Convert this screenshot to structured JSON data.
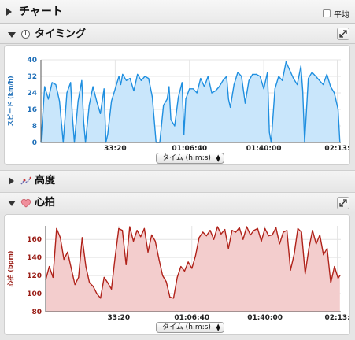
{
  "header": {
    "title": "チャート",
    "checkbox_label": "平均"
  },
  "sections": {
    "timing": {
      "title": "タイミング"
    },
    "altitude": {
      "title": "高度"
    },
    "heart": {
      "title": "心拍"
    }
  },
  "dropdown_label": "タイム (h:m:s)",
  "colors": {
    "speed_line": "#1f8fe0",
    "speed_fill": "#c9e6fb",
    "hr_line": "#b0221a",
    "hr_fill": "#f3cdcd"
  },
  "chart_data": [
    {
      "type": "area",
      "ylabel": "スピード (km/h)",
      "xlabel": "タイム (h:m:s)",
      "ylim": [
        0,
        40
      ],
      "yticks": [
        0,
        8,
        16,
        24,
        32,
        40
      ],
      "xlim": [
        0,
        8075
      ],
      "xtick_seconds": [
        2000,
        4000,
        6000,
        7980
      ],
      "xtick_labels": [
        "33:20",
        "01:06:40",
        "01:40:00",
        "02:13:"
      ],
      "grid": true,
      "x": [
        0,
        100,
        200,
        300,
        400,
        500,
        600,
        700,
        800,
        850,
        900,
        1000,
        1100,
        1150,
        1200,
        1300,
        1400,
        1500,
        1600,
        1700,
        1750,
        1800,
        1900,
        2000,
        2100,
        2150,
        2200,
        2300,
        2400,
        2500,
        2600,
        2700,
        2800,
        2900,
        3000,
        3100,
        3200,
        3300,
        3400,
        3450,
        3500,
        3600,
        3700,
        3800,
        3850,
        3900,
        4000,
        4100,
        4200,
        4300,
        4400,
        4500,
        4600,
        4700,
        4800,
        4900,
        5000,
        5050,
        5100,
        5200,
        5300,
        5400,
        5500,
        5600,
        5700,
        5800,
        5900,
        6000,
        6100,
        6150,
        6200,
        6300,
        6400,
        6500,
        6600,
        6700,
        6800,
        6900,
        7000,
        7050,
        7100,
        7200,
        7300,
        7400,
        7500,
        7600,
        7700,
        7800,
        7900,
        8000,
        8050
      ],
      "values": [
        0,
        27,
        21,
        29,
        28,
        20,
        0,
        24,
        29,
        12,
        0,
        20,
        30,
        10,
        0,
        18,
        27,
        20,
        14,
        26,
        0,
        4,
        20,
        26,
        32,
        28,
        33,
        30,
        31,
        25,
        33,
        30,
        32,
        31,
        22,
        0,
        0,
        18,
        21,
        27,
        11,
        8,
        22,
        29,
        4,
        21,
        26,
        26,
        24,
        31,
        27,
        32,
        24,
        25,
        27,
        30,
        32,
        21,
        17,
        28,
        34,
        32,
        19,
        30,
        33,
        33,
        32,
        26,
        34,
        5,
        0,
        26,
        32,
        30,
        39,
        35,
        31,
        28,
        37,
        25,
        0,
        31,
        34,
        32,
        30,
        28,
        33,
        27,
        24,
        16,
        0
      ]
    },
    {
      "type": "area",
      "ylabel": "心拍 (bpm)",
      "xlabel": "タイム (h:m:s)",
      "ylim": [
        80,
        175
      ],
      "yticks": [
        80,
        100,
        120,
        140,
        160
      ],
      "xlim": [
        0,
        8075
      ],
      "xtick_seconds": [
        2000,
        4000,
        6000,
        7980
      ],
      "xtick_labels": [
        "33:20",
        "01:06:40",
        "01:40:00",
        "02:13:"
      ],
      "grid": true,
      "x": [
        0,
        100,
        200,
        300,
        400,
        500,
        600,
        700,
        800,
        900,
        1000,
        1100,
        1200,
        1300,
        1400,
        1500,
        1600,
        1700,
        1800,
        1900,
        2000,
        2100,
        2200,
        2300,
        2400,
        2500,
        2600,
        2700,
        2800,
        2900,
        3000,
        3100,
        3200,
        3300,
        3400,
        3500,
        3600,
        3700,
        3800,
        3900,
        4000,
        4100,
        4200,
        4300,
        4400,
        4500,
        4600,
        4700,
        4800,
        4900,
        5000,
        5100,
        5200,
        5300,
        5400,
        5500,
        5600,
        5700,
        5800,
        5900,
        6000,
        6100,
        6200,
        6300,
        6400,
        6500,
        6600,
        6700,
        6800,
        6900,
        7000,
        7100,
        7200,
        7300,
        7400,
        7500,
        7600,
        7700,
        7800,
        7900,
        8000,
        8050
      ],
      "values": [
        115,
        130,
        118,
        172,
        162,
        138,
        146,
        128,
        110,
        118,
        162,
        130,
        112,
        108,
        100,
        95,
        118,
        112,
        105,
        140,
        172,
        170,
        132,
        174,
        158,
        170,
        163,
        172,
        146,
        165,
        158,
        138,
        120,
        113,
        96,
        95,
        118,
        130,
        125,
        135,
        128,
        142,
        162,
        168,
        164,
        170,
        160,
        174,
        166,
        171,
        150,
        170,
        168,
        173,
        160,
        174,
        165,
        170,
        172,
        158,
        172,
        164,
        165,
        173,
        155,
        168,
        170,
        126,
        144,
        172,
        168,
        122,
        150,
        170,
        155,
        165,
        143,
        150,
        112,
        130,
        117,
        120
      ]
    }
  ]
}
